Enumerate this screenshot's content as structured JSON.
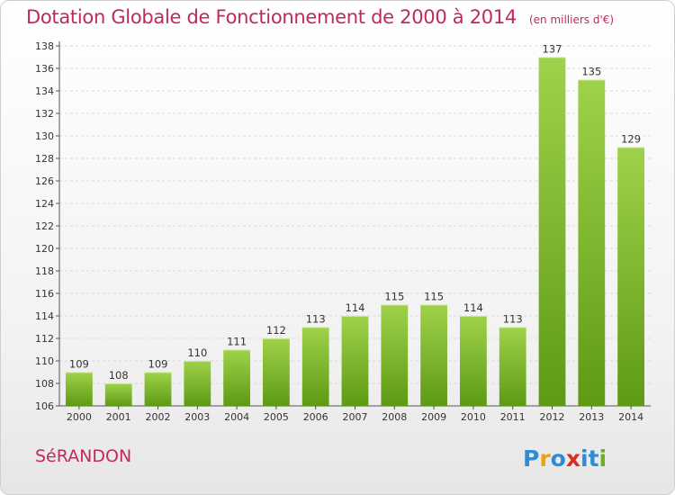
{
  "title": "Dotation Globale de Fonctionnement de 2000 à 2014",
  "unit": "(en milliers d'€)",
  "commune": "SéRANDON",
  "logo": {
    "text": "Proxiti",
    "colors": [
      "#2e8bd6",
      "#e6a50f",
      "#2e8bd6",
      "#d6301f",
      "#2e8bd6",
      "#2e8bd6",
      "#6cae24"
    ]
  },
  "colors": {
    "bar_top": "#9fd24a",
    "bar_bottom": "#5e9a14",
    "title": "#c02a5a"
  },
  "chart_data": {
    "type": "bar",
    "title": "Dotation Globale de Fonctionnement de 2000 à 2014",
    "subtitle": "(en milliers d'€)",
    "xlabel": "",
    "ylabel": "",
    "categories": [
      "2000",
      "2001",
      "2002",
      "2003",
      "2004",
      "2005",
      "2006",
      "2007",
      "2008",
      "2009",
      "2010",
      "2011",
      "2012",
      "2013",
      "2014"
    ],
    "values": [
      109,
      108,
      109,
      110,
      111,
      112,
      113,
      114,
      115,
      115,
      114,
      113,
      137,
      135,
      129
    ],
    "ylim": [
      106,
      138
    ],
    "yticks": [
      106,
      108,
      110,
      112,
      114,
      116,
      118,
      120,
      122,
      124,
      126,
      128,
      130,
      132,
      134,
      136,
      138
    ],
    "grid": true
  }
}
